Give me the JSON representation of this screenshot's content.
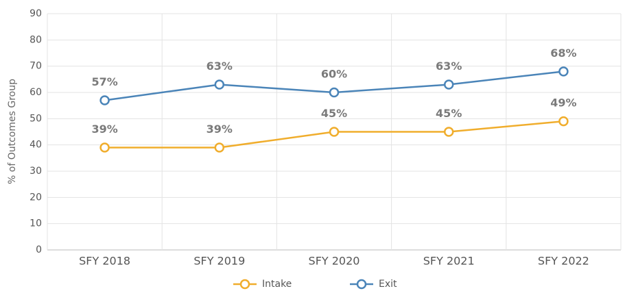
{
  "chart_data": {
    "type": "line",
    "y_label": "% of Outcomes Group",
    "categories": [
      "SFY 2018",
      "SFY 2019",
      "SFY 2020",
      "SFY 2021",
      "SFY 2022"
    ],
    "series": [
      {
        "name": "Intake",
        "color": "#f0ad2c",
        "values": [
          39,
          39,
          45,
          45,
          49
        ],
        "value_labels": [
          "39%",
          "39%",
          "45%",
          "45%",
          "49%"
        ]
      },
      {
        "name": "Exit",
        "color": "#4a84b8",
        "values": [
          57,
          63,
          60,
          63,
          68
        ],
        "value_labels": [
          "57%",
          "63%",
          "60%",
          "63%",
          "68%"
        ]
      }
    ],
    "ylim": [
      0,
      90
    ],
    "yticks": [
      0,
      10,
      20,
      30,
      40,
      50,
      60,
      70,
      80,
      90
    ],
    "grid": true,
    "legend": "bottom"
  }
}
